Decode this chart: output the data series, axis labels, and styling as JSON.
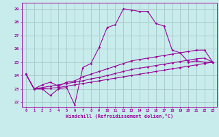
{
  "xlabel": "Windchill (Refroidissement éolien,°C)",
  "bg_color": "#c8ecec",
  "line_color": "#990099",
  "grid_color": "#aacccc",
  "x_values": [
    0,
    1,
    2,
    3,
    4,
    5,
    6,
    7,
    8,
    9,
    10,
    11,
    12,
    13,
    14,
    15,
    16,
    17,
    18,
    19,
    20,
    21,
    22,
    23
  ],
  "line1": [
    24.1,
    23.0,
    23.0,
    22.5,
    23.0,
    23.1,
    21.8,
    24.6,
    24.9,
    26.1,
    27.6,
    27.8,
    29.0,
    28.9,
    28.8,
    28.8,
    27.9,
    27.7,
    25.9,
    25.7,
    25.0,
    25.1,
    25.0,
    25.0
  ],
  "line2": [
    24.1,
    23.0,
    23.3,
    23.5,
    23.2,
    23.5,
    23.6,
    23.9,
    24.1,
    24.3,
    24.5,
    24.7,
    24.9,
    25.1,
    25.2,
    25.3,
    25.4,
    25.5,
    25.6,
    25.7,
    25.8,
    25.9,
    25.9,
    25.0
  ],
  "line3": [
    24.1,
    23.0,
    23.1,
    23.2,
    23.3,
    23.4,
    23.5,
    23.6,
    23.75,
    23.85,
    24.0,
    24.15,
    24.3,
    24.45,
    24.55,
    24.65,
    24.75,
    24.85,
    24.95,
    25.05,
    25.15,
    25.25,
    25.3,
    25.0
  ],
  "line4": [
    24.1,
    23.0,
    23.0,
    23.05,
    23.1,
    23.2,
    23.3,
    23.4,
    23.5,
    23.6,
    23.7,
    23.8,
    23.9,
    24.0,
    24.1,
    24.2,
    24.3,
    24.4,
    24.5,
    24.6,
    24.7,
    24.8,
    24.9,
    25.0
  ],
  "ylim_min": 21.65,
  "ylim_max": 29.45,
  "yticks": [
    22,
    23,
    24,
    25,
    26,
    27,
    28,
    29
  ],
  "xticks": [
    0,
    1,
    2,
    3,
    4,
    5,
    6,
    7,
    8,
    9,
    10,
    11,
    12,
    13,
    14,
    15,
    16,
    17,
    18,
    19,
    20,
    21,
    22,
    23
  ]
}
